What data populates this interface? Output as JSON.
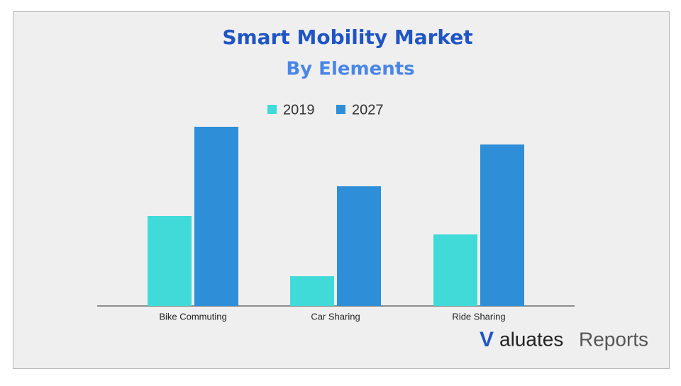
{
  "chart_data": {
    "type": "bar",
    "title": "Smart Mobility Market",
    "subtitle": "By Elements",
    "categories": [
      "Bike Commuting",
      "Car Sharing",
      "Ride Sharing"
    ],
    "series": [
      {
        "name": "2019",
        "color": "#40dbd8",
        "values": [
          127,
          42,
          101
        ]
      },
      {
        "name": "2027",
        "color": "#2e8fd8",
        "values": [
          253,
          169,
          228
        ]
      }
    ],
    "ylim": [
      0,
      260
    ],
    "grid": false,
    "legend": "top"
  },
  "logo": {
    "mark": "V",
    "name": "aluates",
    "suffix": "Reports"
  }
}
